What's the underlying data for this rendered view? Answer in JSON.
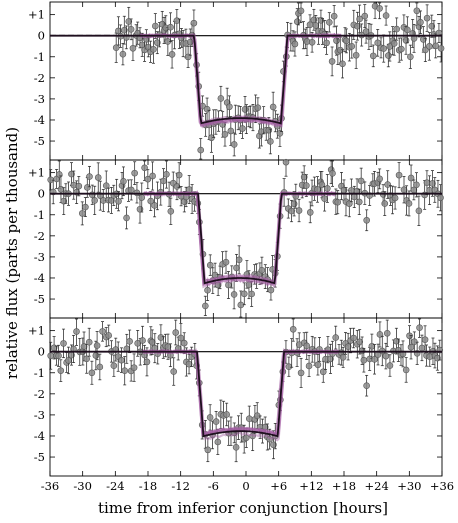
{
  "chart_data": {
    "type": "scatter",
    "xlabel": "time from inferior conjunction [hours]",
    "ylabel": "relative flux (parts per thousand)",
    "xlim": [
      -36,
      36
    ],
    "x_ticks": [
      -36,
      -30,
      -24,
      -18,
      -12,
      -6,
      0,
      6,
      12,
      18,
      24,
      30,
      36
    ],
    "x_tick_labels": [
      "-36",
      "-30",
      "-24",
      "-18",
      "-12",
      "-6",
      "0",
      "+6",
      "+12",
      "+18",
      "+24",
      "+30",
      "+36"
    ],
    "y_ticks": [
      1,
      0,
      -1,
      -2,
      -3,
      -4,
      -5
    ],
    "y_tick_labels": [
      "+1",
      "0",
      "-1",
      "-2",
      "-3",
      "-4",
      "-5"
    ],
    "colors": {
      "points": "#8c8c8c",
      "point_edge": "#555555",
      "errorbar": "#333333",
      "model": "#1e0f1e",
      "model_samples": "#a35fa3",
      "baseline": "#000000"
    },
    "panels": [
      {
        "ylim": [
          -5.9,
          1.6
        ],
        "depth": 4.25,
        "transit_start": -9.5,
        "transit_end": 7.6,
        "data_x_range": [
          -24,
          36
        ],
        "baseline_style": "dashed-then-solid",
        "residual_scatter": 0.55,
        "n_points": 150
      },
      {
        "ylim": [
          -5.9,
          1.6
        ],
        "depth": 4.35,
        "transit_start": -8.8,
        "transit_end": 6.5,
        "data_x_range": [
          -36,
          36
        ],
        "baseline_style": "solid",
        "residual_scatter": 0.6,
        "n_points": 150
      },
      {
        "ylim": [
          -5.9,
          1.6
        ],
        "depth": 4.1,
        "transit_start": -9.0,
        "transit_end": 7.0,
        "data_x_range": [
          -36,
          36
        ],
        "baseline_style": "solid",
        "residual_scatter": 0.5,
        "n_points": 150
      }
    ]
  }
}
